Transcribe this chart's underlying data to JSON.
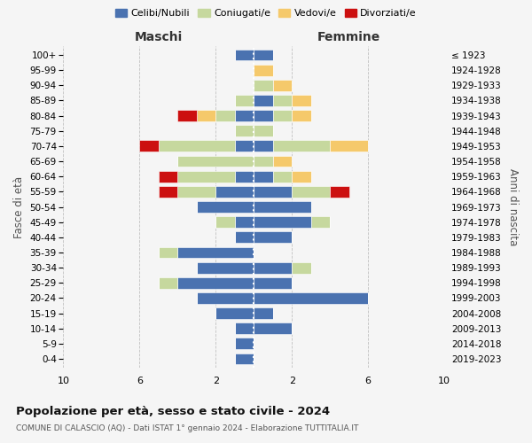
{
  "age_groups_display": [
    "0-4",
    "5-9",
    "10-14",
    "15-19",
    "20-24",
    "25-29",
    "30-34",
    "35-39",
    "40-44",
    "45-49",
    "50-54",
    "55-59",
    "60-64",
    "65-69",
    "70-74",
    "75-79",
    "80-84",
    "85-89",
    "90-94",
    "95-99",
    "100+"
  ],
  "birth_years_display": [
    "2019-2023",
    "2014-2018",
    "2009-2013",
    "2004-2008",
    "1999-2003",
    "1994-1998",
    "1989-1993",
    "1984-1988",
    "1979-1983",
    "1974-1978",
    "1969-1973",
    "1964-1968",
    "1959-1963",
    "1954-1958",
    "1949-1953",
    "1944-1948",
    "1939-1943",
    "1934-1938",
    "1929-1933",
    "1924-1928",
    "≤ 1923"
  ],
  "maschi": {
    "celibi": [
      1,
      1,
      1,
      2,
      3,
      4,
      3,
      4,
      1,
      1,
      3,
      2,
      1,
      0,
      1,
      0,
      1,
      0,
      0,
      0,
      1
    ],
    "coniugati": [
      0,
      0,
      0,
      0,
      0,
      1,
      0,
      1,
      0,
      1,
      0,
      2,
      3,
      4,
      4,
      1,
      1,
      1,
      0,
      0,
      0
    ],
    "vedovi": [
      0,
      0,
      0,
      0,
      0,
      0,
      0,
      0,
      0,
      0,
      0,
      0,
      0,
      0,
      0,
      0,
      1,
      0,
      0,
      0,
      0
    ],
    "divorziati": [
      0,
      0,
      0,
      0,
      0,
      0,
      0,
      0,
      0,
      0,
      0,
      1,
      1,
      0,
      1,
      0,
      1,
      0,
      0,
      0,
      0
    ]
  },
  "femmine": {
    "nubili": [
      0,
      0,
      2,
      1,
      6,
      2,
      2,
      0,
      2,
      3,
      3,
      2,
      1,
      0,
      1,
      0,
      1,
      1,
      0,
      0,
      1
    ],
    "coniugate": [
      0,
      0,
      0,
      0,
      0,
      0,
      1,
      0,
      0,
      1,
      0,
      2,
      1,
      1,
      3,
      1,
      1,
      1,
      1,
      0,
      0
    ],
    "vedove": [
      0,
      0,
      0,
      0,
      0,
      0,
      0,
      0,
      0,
      0,
      0,
      0,
      1,
      1,
      2,
      0,
      1,
      1,
      1,
      1,
      0
    ],
    "divorziate": [
      0,
      0,
      0,
      0,
      0,
      0,
      0,
      0,
      0,
      0,
      0,
      1,
      0,
      0,
      0,
      0,
      0,
      0,
      0,
      0,
      0
    ]
  },
  "colors": {
    "celibi_nubili": "#4A72B0",
    "coniugati": "#C6D89E",
    "vedovi": "#F5C96B",
    "divorziati": "#CC1010"
  },
  "title": "Popolazione per età, sesso e stato civile - 2024",
  "subtitle": "COMUNE DI CALASCIO (AQ) - Dati ISTAT 1° gennaio 2024 - Elaborazione TUTTITALIA.IT",
  "xlabel_left": "Maschi",
  "xlabel_right": "Femmine",
  "ylabel_left": "Fasce di età",
  "ylabel_right": "Anni di nascita",
  "xlim": 10,
  "xticks": [
    -10,
    -6,
    -2,
    2,
    6,
    10
  ],
  "legend_labels": [
    "Celibi/Nubili",
    "Coniugati/e",
    "Vedovi/e",
    "Divorziati/e"
  ],
  "background_color": "#f5f5f5",
  "grid_color": "#bbbbbb"
}
